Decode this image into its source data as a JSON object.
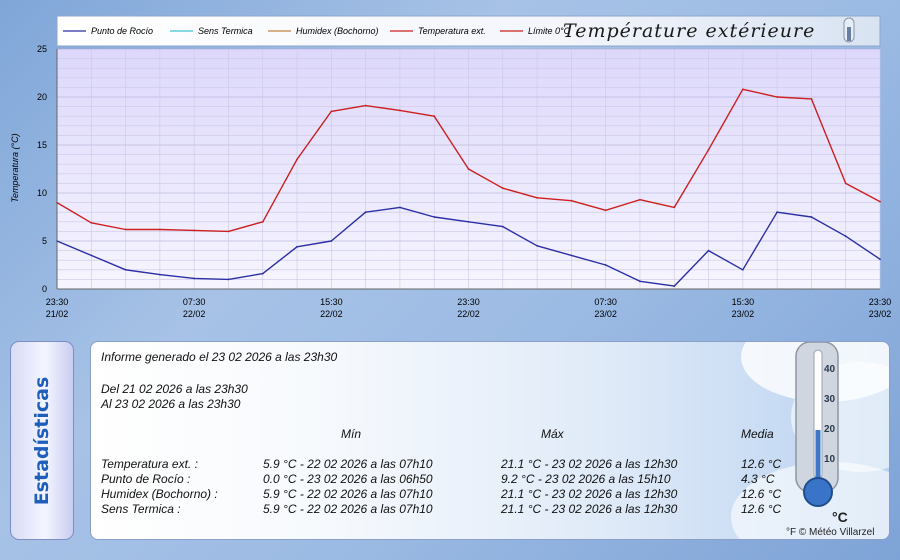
{
  "chart_data": {
    "type": "line",
    "title": "Température extérieure",
    "ylabel": "Temperatura (°C)",
    "ylim": [
      0,
      25
    ],
    "yticks": [
      "0",
      "5",
      "10",
      "15",
      "20",
      "25"
    ],
    "x_ticks": [
      {
        "time": "23:30",
        "date": "21/02"
      },
      {
        "time": "07:30",
        "date": "22/02"
      },
      {
        "time": "15:30",
        "date": "22/02"
      },
      {
        "time": "23:30",
        "date": "22/02"
      },
      {
        "time": "07:30",
        "date": "23/02"
      },
      {
        "time": "15:30",
        "date": "23/02"
      },
      {
        "time": "23:30",
        "date": "23/02"
      }
    ],
    "x_hours": [
      0,
      2,
      4,
      6,
      8,
      10,
      12,
      14,
      16,
      18,
      20,
      22,
      24,
      26,
      28,
      30,
      32,
      34,
      36,
      38,
      40,
      42,
      44,
      46,
      48
    ],
    "legend": [
      {
        "name": "Punto de Rocío",
        "color": "#2b2fa3"
      },
      {
        "name": "Sens Termica",
        "color": "#3ec6cf"
      },
      {
        "name": "Humidex (Bochorno)",
        "color": "#c08540"
      },
      {
        "name": "Temperatura ext.",
        "color": "#cc1f1f"
      },
      {
        "name": "Límite 0°C",
        "color": "#cc1f1f"
      }
    ],
    "series": [
      {
        "name": "Temperatura ext.",
        "color": "#cc1f1f",
        "values": [
          9.0,
          6.9,
          6.2,
          6.2,
          6.1,
          6.0,
          7.0,
          13.5,
          18.5,
          19.1,
          18.6,
          18.0,
          12.5,
          10.5,
          9.5,
          9.2,
          8.2,
          9.3,
          8.5,
          14.5,
          20.8,
          20.0,
          19.8,
          11.0,
          9.1
        ]
      },
      {
        "name": "Punto de Rocío",
        "color": "#2b2fa3",
        "values": [
          5.0,
          3.5,
          2.0,
          1.5,
          1.1,
          1.0,
          1.6,
          4.4,
          5.0,
          8.0,
          8.5,
          7.5,
          7.0,
          6.5,
          4.5,
          3.5,
          2.5,
          0.8,
          0.3,
          4.0,
          2.0,
          8.0,
          7.5,
          5.5,
          3.1
        ]
      }
    ]
  },
  "stats": {
    "tab_label": "Estadísticas",
    "report": "Informe generado el 23 02 2026 a las 23h30",
    "from": "Del 21 02 2026 a las 23h30",
    "to": "Al 23 02 2026 a las 23h30",
    "headers": {
      "min": "Mín",
      "max": "Máx",
      "avg": "Media"
    },
    "rows": [
      {
        "label": "Temperatura ext. :",
        "min": "5.9 °C - 22 02 2026 a las 07h10",
        "max": "21.1 °C - 23 02 2026 a las 12h30",
        "avg": "12.6 °C"
      },
      {
        "label": "Punto de Rocío :",
        "min": "0.0 °C - 23 02 2026 a las 06h50",
        "max": "9.2 °C - 23 02 2026 a las 15h10",
        "avg": "4.3 °C"
      },
      {
        "label": "Humidex (Bochorno) :",
        "min": "5.9 °C - 22 02 2026 a las 07h10",
        "max": "21.1 °C - 23 02 2026 a las 12h30",
        "avg": "12.6 °C"
      },
      {
        "label": "Sens Termica :",
        "min": "5.9 °C - 22 02 2026 a las 07h10",
        "max": "21.1 °C - 23 02 2026 a las 12h30",
        "avg": "12.6 °C"
      }
    ],
    "credit": "© Météo Villarzel",
    "thermo_unit": "°C",
    "thermo_ticks": [
      "40",
      "30",
      "20",
      "10"
    ]
  }
}
